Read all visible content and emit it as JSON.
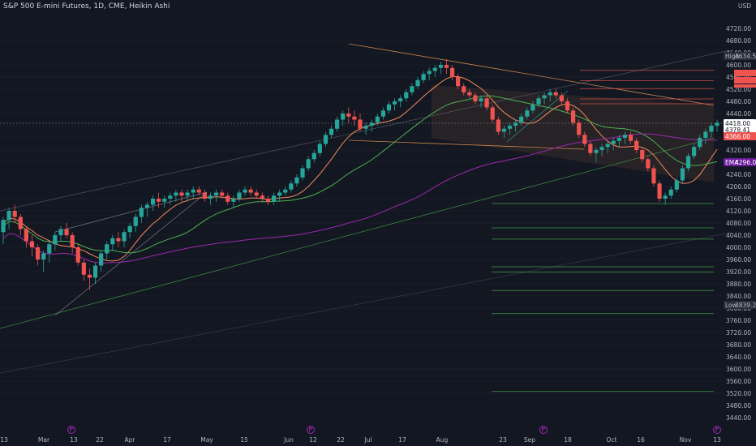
{
  "header": {
    "title": "S&P 500 E-mini Futures, 1D, CME, Heikin Ashi",
    "currency": "USD"
  },
  "colors": {
    "background": "#131722",
    "up": "#26a69a",
    "down": "#ef5350",
    "ma_fast": "#f48a5c",
    "ma_slow": "#4caf50",
    "ema": "#9c27b0",
    "channel": "#f4a05a"
  },
  "icons": [
    "flag-icon",
    "flag-icon",
    "flag-icon",
    "flag-icon"
  ],
  "chart_data": {
    "type": "candlestick",
    "title": "S&P 500 E-mini Futures, 1D, CME, Heikin Ashi",
    "y_axis": {
      "min": 3440,
      "max": 4800,
      "ticks": [
        4720,
        4680,
        4640,
        4600,
        4560,
        4520,
        4480,
        4440,
        4400,
        4360,
        4320,
        4280,
        4240,
        4200,
        4160,
        4120,
        4080,
        4040,
        4000,
        3960,
        3920,
        3880,
        3840,
        3800,
        3760,
        3720,
        3680,
        3640,
        3600,
        3560,
        3520,
        3480,
        3440
      ],
      "currency": "USD"
    },
    "x_axis": {
      "labels": [
        "13",
        "Mar",
        "13",
        "22",
        "Apr",
        "17",
        "May",
        "15",
        "Jun",
        "12",
        "22",
        "Jul",
        "17",
        "Aug",
        "23",
        "Sep",
        "18",
        "Oct",
        "16",
        "Nov",
        "13"
      ]
    },
    "markers": [
      {
        "label": "High",
        "value": "4634.50"
      },
      {
        "label": "Low",
        "value": "3839.25"
      },
      {
        "label": "EMA",
        "value": "4296.00"
      }
    ],
    "price_tags": [
      {
        "label": "",
        "value": "4418.00",
        "color": "#ffffff"
      },
      {
        "label": "",
        "value": "4378.41",
        "color": "#ffffff"
      },
      {
        "label": "",
        "value": "4366.00",
        "color": "#ef5350"
      }
    ],
    "horizontal_levels": [
      4582,
      4548,
      4522,
      4488,
      4472,
      4144,
      4064,
      4027,
      3936,
      3919,
      3858,
      3782,
      3526
    ],
    "candles": [
      [
        4050,
        4100,
        4010,
        4090
      ],
      [
        4090,
        4130,
        4060,
        4120
      ],
      [
        4120,
        4140,
        4080,
        4100
      ],
      [
        4100,
        4110,
        4040,
        4060
      ],
      [
        4060,
        4070,
        4000,
        4020
      ],
      [
        4020,
        4040,
        3970,
        4000
      ],
      [
        4000,
        4010,
        3940,
        3960
      ],
      [
        3960,
        3990,
        3920,
        3980
      ],
      [
        3980,
        4020,
        3950,
        4010
      ],
      [
        4010,
        4050,
        3990,
        4040
      ],
      [
        4040,
        4070,
        4020,
        4060
      ],
      [
        4060,
        4080,
        4030,
        4040
      ],
      [
        4040,
        4050,
        3980,
        4000
      ],
      [
        4000,
        4010,
        3940,
        3950
      ],
      [
        3950,
        3960,
        3890,
        3910
      ],
      [
        3910,
        3930,
        3860,
        3900
      ],
      [
        3900,
        3950,
        3880,
        3940
      ],
      [
        3940,
        3990,
        3920,
        3980
      ],
      [
        3980,
        4020,
        3960,
        4010
      ],
      [
        4010,
        4040,
        3990,
        4030
      ],
      [
        4030,
        4050,
        4000,
        4020
      ],
      [
        4020,
        4060,
        4000,
        4050
      ],
      [
        4050,
        4080,
        4030,
        4070
      ],
      [
        4070,
        4110,
        4050,
        4100
      ],
      [
        4100,
        4140,
        4080,
        4130
      ],
      [
        4130,
        4150,
        4100,
        4140
      ],
      [
        4140,
        4170,
        4120,
        4160
      ],
      [
        4160,
        4180,
        4130,
        4150
      ],
      [
        4150,
        4170,
        4130,
        4160
      ],
      [
        4160,
        4180,
        4140,
        4170
      ],
      [
        4170,
        4190,
        4150,
        4180
      ],
      [
        4180,
        4190,
        4150,
        4170
      ],
      [
        4170,
        4190,
        4150,
        4180
      ],
      [
        4180,
        4200,
        4160,
        4190
      ],
      [
        4190,
        4200,
        4170,
        4180
      ],
      [
        4180,
        4190,
        4150,
        4160
      ],
      [
        4160,
        4180,
        4140,
        4170
      ],
      [
        4170,
        4190,
        4150,
        4180
      ],
      [
        4180,
        4190,
        4160,
        4170
      ],
      [
        4170,
        4180,
        4140,
        4150
      ],
      [
        4150,
        4170,
        4130,
        4160
      ],
      [
        4160,
        4190,
        4150,
        4180
      ],
      [
        4180,
        4200,
        4170,
        4190
      ],
      [
        4190,
        4200,
        4170,
        4180
      ],
      [
        4180,
        4190,
        4160,
        4170
      ],
      [
        4170,
        4180,
        4150,
        4160
      ],
      [
        4160,
        4170,
        4140,
        4150
      ],
      [
        4150,
        4180,
        4140,
        4170
      ],
      [
        4170,
        4190,
        4150,
        4180
      ],
      [
        4180,
        4200,
        4170,
        4190
      ],
      [
        4190,
        4220,
        4180,
        4210
      ],
      [
        4210,
        4240,
        4200,
        4230
      ],
      [
        4230,
        4270,
        4220,
        4260
      ],
      [
        4260,
        4300,
        4250,
        4290
      ],
      [
        4290,
        4320,
        4280,
        4310
      ],
      [
        4310,
        4350,
        4300,
        4340
      ],
      [
        4340,
        4380,
        4330,
        4370
      ],
      [
        4370,
        4400,
        4360,
        4390
      ],
      [
        4390,
        4430,
        4380,
        4420
      ],
      [
        4420,
        4450,
        4400,
        4440
      ],
      [
        4440,
        4460,
        4410,
        4430
      ],
      [
        4430,
        4450,
        4400,
        4420
      ],
      [
        4420,
        4440,
        4380,
        4390
      ],
      [
        4390,
        4410,
        4370,
        4400
      ],
      [
        4400,
        4420,
        4380,
        4410
      ],
      [
        4410,
        4440,
        4400,
        4430
      ],
      [
        4430,
        4460,
        4420,
        4450
      ],
      [
        4450,
        4480,
        4440,
        4470
      ],
      [
        4470,
        4490,
        4450,
        4480
      ],
      [
        4480,
        4500,
        4460,
        4490
      ],
      [
        4490,
        4520,
        4480,
        4510
      ],
      [
        4510,
        4540,
        4500,
        4530
      ],
      [
        4530,
        4560,
        4520,
        4550
      ],
      [
        4550,
        4580,
        4540,
        4570
      ],
      [
        4570,
        4590,
        4550,
        4580
      ],
      [
        4580,
        4600,
        4560,
        4590
      ],
      [
        4590,
        4610,
        4570,
        4600
      ],
      [
        4600,
        4620,
        4570,
        4590
      ],
      [
        4590,
        4600,
        4550,
        4560
      ],
      [
        4560,
        4570,
        4520,
        4530
      ],
      [
        4530,
        4540,
        4500,
        4510
      ],
      [
        4510,
        4520,
        4490,
        4500
      ],
      [
        4500,
        4510,
        4470,
        4480
      ],
      [
        4480,
        4500,
        4460,
        4490
      ],
      [
        4490,
        4500,
        4450,
        4460
      ],
      [
        4460,
        4470,
        4410,
        4420
      ],
      [
        4420,
        4430,
        4370,
        4380
      ],
      [
        4380,
        4400,
        4360,
        4390
      ],
      [
        4390,
        4410,
        4370,
        4400
      ],
      [
        4400,
        4420,
        4380,
        4410
      ],
      [
        4410,
        4440,
        4400,
        4430
      ],
      [
        4430,
        4460,
        4420,
        4450
      ],
      [
        4450,
        4480,
        4440,
        4470
      ],
      [
        4470,
        4500,
        4460,
        4490
      ],
      [
        4490,
        4510,
        4470,
        4500
      ],
      [
        4500,
        4520,
        4480,
        4510
      ],
      [
        4510,
        4520,
        4490,
        4500
      ],
      [
        4500,
        4510,
        4470,
        4480
      ],
      [
        4480,
        4490,
        4440,
        4450
      ],
      [
        4450,
        4460,
        4400,
        4410
      ],
      [
        4410,
        4420,
        4360,
        4370
      ],
      [
        4370,
        4380,
        4330,
        4340
      ],
      [
        4340,
        4350,
        4300,
        4310
      ],
      [
        4310,
        4330,
        4280,
        4320
      ],
      [
        4320,
        4340,
        4300,
        4330
      ],
      [
        4330,
        4350,
        4310,
        4340
      ],
      [
        4340,
        4360,
        4320,
        4350
      ],
      [
        4350,
        4370,
        4330,
        4360
      ],
      [
        4360,
        4380,
        4340,
        4370
      ],
      [
        4370,
        4380,
        4340,
        4350
      ],
      [
        4350,
        4360,
        4310,
        4320
      ],
      [
        4320,
        4330,
        4280,
        4290
      ],
      [
        4290,
        4300,
        4250,
        4260
      ],
      [
        4260,
        4270,
        4200,
        4210
      ],
      [
        4210,
        4220,
        4150,
        4160
      ],
      [
        4160,
        4180,
        4140,
        4170
      ],
      [
        4170,
        4200,
        4160,
        4190
      ],
      [
        4190,
        4230,
        4180,
        4220
      ],
      [
        4220,
        4270,
        4210,
        4260
      ],
      [
        4260,
        4310,
        4250,
        4300
      ],
      [
        4300,
        4340,
        4290,
        4330
      ],
      [
        4330,
        4370,
        4320,
        4360
      ],
      [
        4360,
        4390,
        4340,
        4380
      ],
      [
        4380,
        4410,
        4360,
        4400
      ],
      [
        4400,
        4420,
        4380,
        4410
      ]
    ]
  }
}
